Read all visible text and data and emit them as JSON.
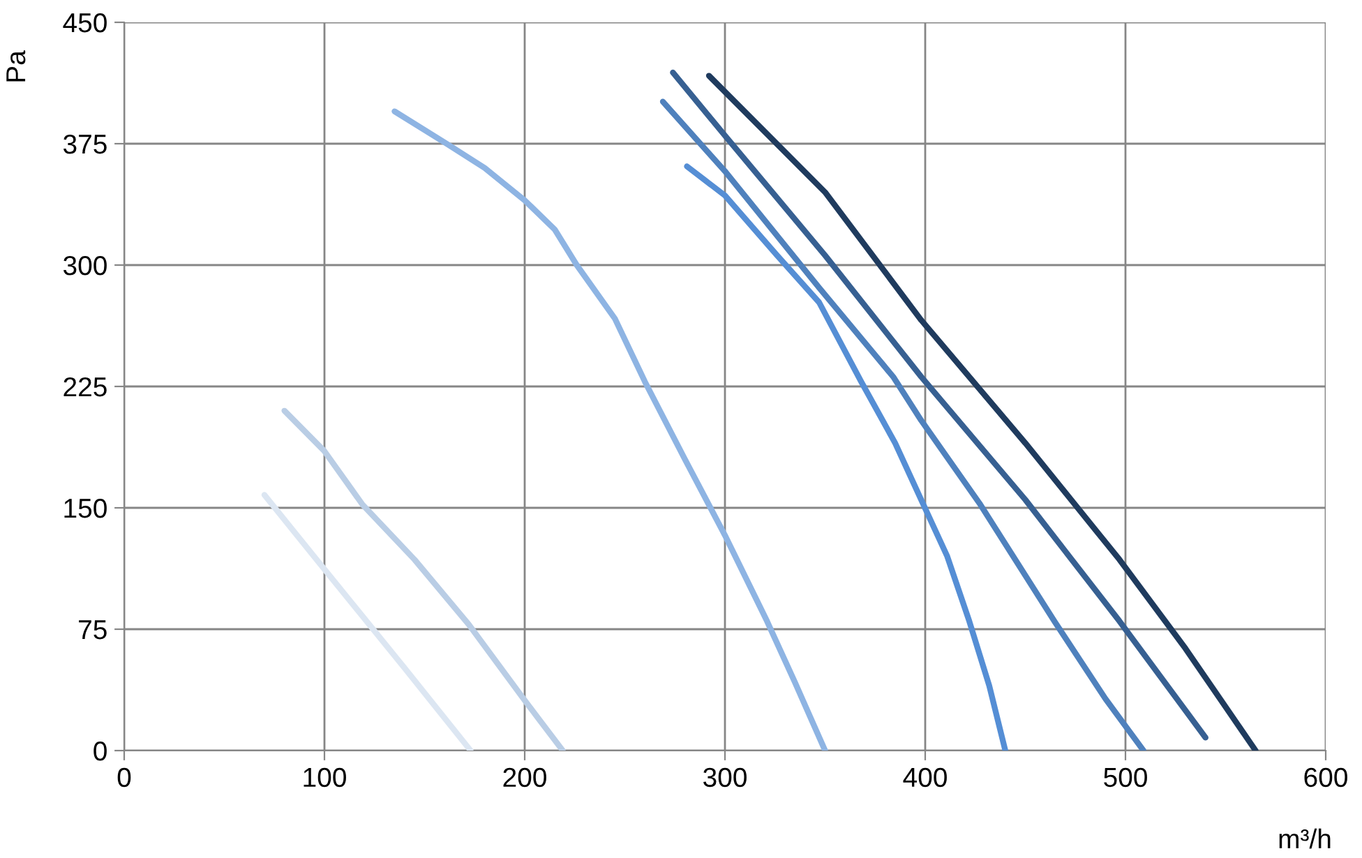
{
  "chart_data": {
    "type": "line",
    "xlabel": "m³/h",
    "ylabel": "Pa",
    "xlim": [
      0,
      600
    ],
    "xticks": [
      0,
      100,
      200,
      300,
      400,
      500,
      600
    ],
    "ylim": [
      0,
      450
    ],
    "yticks": [
      0,
      75,
      150,
      225,
      300,
      375,
      450
    ],
    "grid": true,
    "legend": false,
    "marker": "none",
    "line_style": "solid",
    "series": [
      {
        "color": "#dce6f2",
        "x": [
          70,
          100,
          140,
          173
        ],
        "values": [
          158,
          112,
          51,
          0
        ]
      },
      {
        "color": "#b9cde5",
        "x": [
          80,
          100,
          119,
          145,
          172,
          200,
          219
        ],
        "values": [
          210,
          185,
          152,
          118,
          78,
          31,
          0
        ]
      },
      {
        "color": "#8eb4e3",
        "x": [
          135,
          161,
          180,
          200,
          215,
          226,
          245,
          260,
          280,
          300,
          321,
          335,
          350
        ],
        "values": [
          395,
          375,
          360,
          340,
          322,
          300,
          267,
          228,
          180,
          133,
          80,
          42,
          0
        ]
      },
      {
        "color": "#558ed5",
        "x": [
          281,
          300,
          326,
          347,
          368,
          385,
          398,
          411,
          422,
          432,
          440
        ],
        "values": [
          361,
          343,
          306,
          277,
          228,
          190,
          155,
          120,
          80,
          40,
          0
        ]
      },
      {
        "color": "#4f81bd",
        "x": [
          269,
          300,
          347,
          384,
          398,
          427,
          465,
          490,
          509
        ],
        "values": [
          401,
          358,
          286,
          231,
          204,
          153,
          79,
          32,
          0
        ]
      },
      {
        "color": "#376092",
        "x": [
          274,
          300,
          350,
          398,
          450,
          497,
          540
        ],
        "values": [
          419,
          380,
          306,
          231,
          155,
          80,
          8
        ]
      },
      {
        "color": "#1f3b5e",
        "x": [
          292,
          350,
          398,
          450,
          497,
          530,
          565
        ],
        "values": [
          417,
          345,
          266,
          190,
          118,
          63,
          0
        ]
      }
    ]
  }
}
